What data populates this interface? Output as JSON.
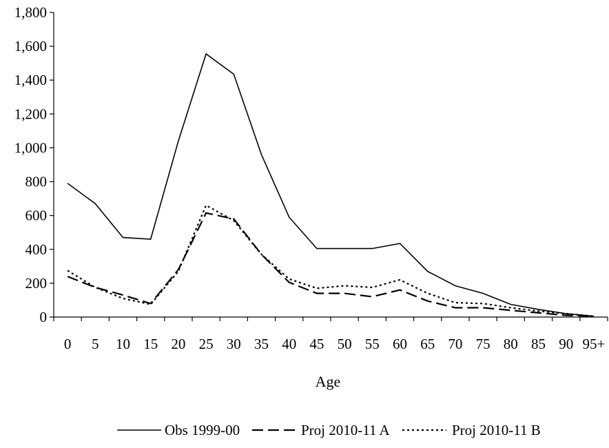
{
  "chart_data": {
    "type": "line",
    "title": "",
    "xlabel": "Age",
    "ylabel": "",
    "categories": [
      "0",
      "5",
      "10",
      "15",
      "20",
      "25",
      "30",
      "35",
      "40",
      "45",
      "50",
      "55",
      "60",
      "65",
      "70",
      "75",
      "80",
      "85",
      "90",
      "95+"
    ],
    "yticks": [
      "0",
      "200",
      "400",
      "600",
      "800",
      "1,000",
      "1,200",
      "1,400",
      "1,600",
      "1,800"
    ],
    "ylim": [
      0,
      1800
    ],
    "grid": false,
    "legend_position": "bottom",
    "series": [
      {
        "name": "Obs 1999-00",
        "style": "solid",
        "color": "#000000",
        "values": [
          790,
          670,
          470,
          460,
          1040,
          1555,
          1435,
          960,
          590,
          405,
          405,
          405,
          435,
          270,
          185,
          140,
          75,
          45,
          20,
          5
        ]
      },
      {
        "name": "Proj 2010-11 A",
        "style": "dashed",
        "color": "#000000",
        "values": [
          240,
          175,
          130,
          80,
          280,
          615,
          580,
          370,
          205,
          140,
          140,
          120,
          160,
          95,
          55,
          55,
          40,
          25,
          10,
          5
        ]
      },
      {
        "name": "Proj 2010-11 B",
        "style": "dotted",
        "color": "#000000",
        "values": [
          275,
          175,
          110,
          75,
          270,
          660,
          570,
          370,
          225,
          170,
          185,
          175,
          220,
          140,
          85,
          80,
          55,
          35,
          20,
          5
        ]
      }
    ]
  }
}
